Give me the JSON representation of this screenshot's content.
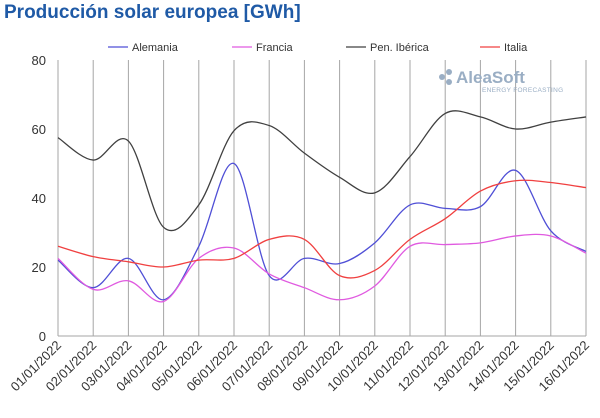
{
  "title": "Producción solar europea [GWh]",
  "logo": {
    "name": "AleaSoft",
    "tagline": "ENERGY FORECASTING"
  },
  "chart_data": {
    "type": "line",
    "title": "Producción solar europea [GWh]",
    "xlabel": "",
    "ylabel": "",
    "ylim": [
      0,
      80
    ],
    "yticks": [
      "0",
      "20",
      "40",
      "60",
      "80"
    ],
    "grid": "vertical",
    "legend_position": "top",
    "categories": [
      "01/01/2022",
      "02/01/2022",
      "03/01/2022",
      "04/01/2022",
      "05/01/2022",
      "06/01/2022",
      "07/01/2022",
      "08/01/2022",
      "09/01/2022",
      "10/01/2022",
      "11/01/2022",
      "12/01/2022",
      "13/01/2022",
      "14/01/2022",
      "15/01/2022",
      "16/01/2022"
    ],
    "series": [
      {
        "name": "Alemania",
        "color": "#4f4fd6",
        "values": [
          22,
          14,
          22.5,
          10.5,
          26,
          50,
          17.5,
          22.5,
          21,
          27,
          38,
          37,
          37.5,
          48,
          30.5,
          24.5
        ]
      },
      {
        "name": "Francia",
        "color": "#e05ae0",
        "values": [
          22.5,
          13.5,
          16,
          10,
          22.5,
          25.5,
          18,
          14,
          10.5,
          14.5,
          26,
          26.5,
          27,
          29,
          29,
          24
        ]
      },
      {
        "name": "Pen. Ibérica",
        "color": "#404040",
        "values": [
          57.5,
          51,
          56.5,
          31.5,
          38,
          59.5,
          61,
          53,
          46,
          41.5,
          52,
          64.5,
          63.5,
          60,
          62,
          63.5
        ]
      },
      {
        "name": "Italia",
        "color": "#f04040",
        "values": [
          26,
          23,
          21.5,
          20,
          22,
          22.5,
          28,
          28,
          17.5,
          19,
          28,
          34,
          42,
          45,
          44.5,
          43
        ]
      }
    ]
  }
}
